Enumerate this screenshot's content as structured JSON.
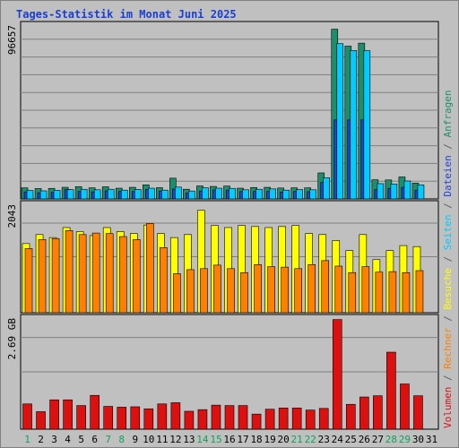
{
  "chart_data": {
    "type": "bar",
    "title": "Tages-Statistik im Monat Juni 2025",
    "categories": [
      "1",
      "2",
      "3",
      "4",
      "5",
      "6",
      "7",
      "8",
      "9",
      "10",
      "11",
      "12",
      "13",
      "14",
      "15",
      "16",
      "17",
      "18",
      "19",
      "20",
      "21",
      "22",
      "23",
      "24",
      "25",
      "26",
      "27",
      "28",
      "29",
      "30",
      "31"
    ],
    "weekend_days": [
      "1",
      "7",
      "8",
      "14",
      "15",
      "21",
      "22",
      "28",
      "29"
    ],
    "panels": [
      {
        "max_label": "96657",
        "ymax": 100000,
        "series": [
          {
            "name": "Anfragen",
            "color": "#1b8f6c",
            "values": [
              6300,
              5900,
              6000,
              6600,
              7000,
              6300,
              6900,
              6100,
              6600,
              8000,
              6400,
              11800,
              5500,
              7400,
              7100,
              7300,
              6100,
              6500,
              6600,
              6200,
              6300,
              6300,
              14800,
              96657,
              87000,
              88700,
              10900,
              10800,
              12500,
              9000,
              null
            ]
          },
          {
            "name": "Dateien",
            "color": "#1d46d6",
            "values": [
              4000,
              3500,
              3700,
              5300,
              4300,
              4000,
              4600,
              4300,
              4200,
              5400,
              4500,
              5600,
              3400,
              4500,
              5100,
              5000,
              4200,
              4200,
              4300,
              3900,
              4300,
              4100,
              9400,
              45000,
              45000,
              45000,
              5300,
              6000,
              6600,
              5000,
              null
            ]
          },
          {
            "name": "Seiten",
            "color": "#00ccff",
            "values": [
              4800,
              4600,
              4900,
              5300,
              5500,
              5200,
              5500,
              5000,
              5400,
              6100,
              5000,
              6700,
              4500,
              6300,
              6100,
              6000,
              5200,
              5500,
              5700,
              5000,
              5300,
              5200,
              12100,
              88400,
              84500,
              84400,
              8700,
              8500,
              10200,
              8000,
              null
            ]
          }
        ]
      },
      {
        "max_label": "2043",
        "ymax": 2200,
        "series": [
          {
            "name": "Besuche",
            "color": "#ffff00",
            "values": [
              1380,
              1560,
              1500,
              1700,
              1620,
              1540,
              1700,
              1620,
              1580,
              1750,
              1580,
              1500,
              1560,
              2043,
              1740,
              1700,
              1740,
              1720,
              1700,
              1720,
              1740,
              1580,
              1560,
              1440,
              1240,
              1560,
              1060,
              1240,
              1340,
              1320,
              null
            ]
          },
          {
            "name": "Rechner",
            "color": "#ff8000",
            "values": [
              1280,
              1460,
              1480,
              1640,
              1560,
              1590,
              1580,
              1520,
              1460,
              1780,
              1300,
              780,
              860,
              880,
              950,
              880,
              800,
              960,
              920,
              910,
              880,
              960,
              1040,
              930,
              800,
              920,
              810,
              820,
              800,
              840,
              null
            ]
          }
        ]
      },
      {
        "max_label": "2.69 GB",
        "ymax": 2.77,
        "series": [
          {
            "name": "Volumen",
            "color": "#dd1010",
            "values": [
              0.62,
              0.43,
              0.72,
              0.72,
              0.58,
              0.83,
              0.56,
              0.54,
              0.55,
              0.5,
              0.62,
              0.65,
              0.44,
              0.48,
              0.59,
              0.58,
              0.58,
              0.37,
              0.49,
              0.52,
              0.52,
              0.47,
              0.51,
              2.69,
              0.61,
              0.79,
              0.82,
              1.89,
              1.11,
              0.82,
              null
            ]
          }
        ]
      }
    ],
    "right_legend": [
      {
        "text": "Volumen",
        "color": "#dd1010"
      },
      {
        "text": " / ",
        "color": "#606060"
      },
      {
        "text": "Rechner",
        "color": "#ff8000"
      },
      {
        "text": " / ",
        "color": "#606060"
      },
      {
        "text": "Besuche",
        "color": "#ffff00"
      },
      {
        "text": " / ",
        "color": "#606060"
      },
      {
        "text": "Seiten",
        "color": "#00ccff"
      },
      {
        "text": " / ",
        "color": "#606060"
      },
      {
        "text": "Dateien",
        "color": "#1d46d6"
      },
      {
        "text": " / ",
        "color": "#606060"
      },
      {
        "text": "Anfragen",
        "color": "#1b8f6c"
      }
    ],
    "colors": {
      "title": "#1a3fd0",
      "weekend_label": "#13a05a",
      "weekday_label": "#000000",
      "panel_bg": "#c0c0c0",
      "grid": "#808080"
    },
    "grid": true
  }
}
